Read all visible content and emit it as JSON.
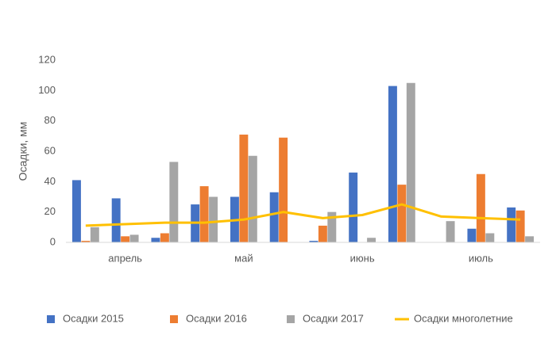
{
  "chart_data": {
    "type": "bar",
    "y_axis_label": "Осадки, мм",
    "categories": [
      null,
      "апрель",
      null,
      null,
      "май",
      null,
      null,
      "июнь",
      null,
      null,
      "июль",
      null
    ],
    "series": [
      {
        "name": "Осадки 2015",
        "color": "#4472c4",
        "values": [
          41,
          29,
          3,
          25,
          30,
          33,
          1,
          46,
          103,
          0,
          9,
          23
        ]
      },
      {
        "name": "Осадки 2016",
        "color": "#ed7d31",
        "values": [
          1,
          4,
          6,
          37,
          71,
          69,
          11,
          0,
          38,
          0,
          45,
          21
        ]
      },
      {
        "name": "Осадки 2017",
        "color": "#a5a5a5",
        "values": [
          10,
          5,
          53,
          30,
          57,
          0,
          20,
          3,
          105,
          14,
          6,
          4
        ]
      },
      {
        "name": "Осадки многолетние",
        "color": "#ffc000",
        "type": "line",
        "values": [
          11,
          12,
          13,
          13,
          15,
          20,
          16,
          18,
          25,
          17,
          16,
          15
        ]
      }
    ],
    "ylim": [
      0,
      120
    ],
    "yticks": [
      0,
      20,
      40,
      60,
      80,
      100,
      120
    ],
    "grid": false,
    "legend": "bottom"
  }
}
